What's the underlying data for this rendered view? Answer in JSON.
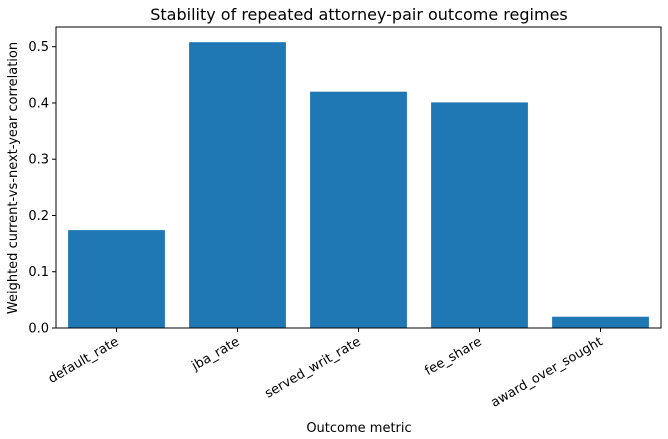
{
  "chart_data": {
    "type": "bar",
    "title": "Stability of repeated attorney-pair outcome regimes",
    "xlabel": "Outcome metric",
    "ylabel": "Weighted current-vs-next-year correlation",
    "categories": [
      "default_rate",
      "jba_rate",
      "served_writ_rate",
      "fee_share",
      "award_over_sought"
    ],
    "values": [
      0.174,
      0.508,
      0.42,
      0.401,
      0.02
    ],
    "ylim": [
      0,
      0.535
    ],
    "yticks": [
      "0.0",
      "0.1",
      "0.2",
      "0.3",
      "0.4",
      "0.5"
    ],
    "bar_color": "#1f77b4",
    "grid": false,
    "legend": "none"
  }
}
